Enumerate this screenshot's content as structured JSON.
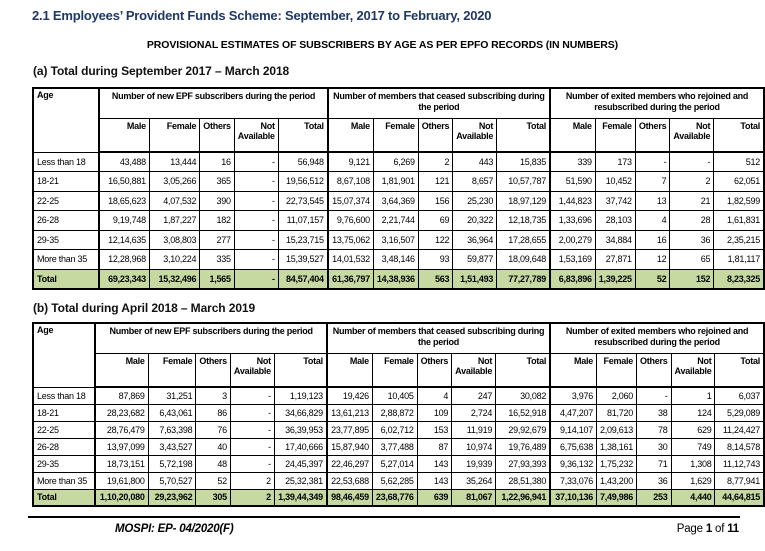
{
  "page": {
    "title": "2.1 Employees’ Provident Funds Scheme: September, 2017 to February, 2020",
    "subtitle": "PROVISIONAL ESTIMATES OF SUBSCRIBERS BY AGE AS PER EPFO RECORDS (IN NUMBERS)",
    "footer_left": "MOSPI: EP- 04/2020(F)",
    "footer_page": {
      "prefix": "Page",
      "number": "1",
      "of": "of",
      "total": "11"
    }
  },
  "colors": {
    "title_navy": "#1F3864",
    "total_row_green": "#C5D9A0",
    "border_black": "#000000"
  },
  "columns": {
    "age": "Age",
    "groups": [
      {
        "title": "Number of new EPF subscribers during the period"
      },
      {
        "title": "Number of members that ceased subscribing during the period"
      },
      {
        "title": "Number of exited members who rejoined and resubscribed during the period"
      }
    ],
    "subs": [
      "Male",
      "Female",
      "Others",
      "Not Available",
      "Total"
    ]
  },
  "tables": [
    {
      "id": "a",
      "heading": "(a)  Total during September 2017 – March 2018",
      "rows": [
        [
          "Less than 18",
          "43,488",
          "13,444",
          "16",
          "-",
          "56,948",
          "9,121",
          "6,269",
          "2",
          "443",
          "15,835",
          "339",
          "173",
          "-",
          "-",
          "512"
        ],
        [
          "18-21",
          "16,50,881",
          "3,05,266",
          "365",
          "-",
          "19,56,512",
          "8,67,108",
          "1,81,901",
          "121",
          "8,657",
          "10,57,787",
          "51,590",
          "10,452",
          "7",
          "2",
          "62,051"
        ],
        [
          "22-25",
          "18,65,623",
          "4,07,532",
          "390",
          "-",
          "22,73,545",
          "15,07,374",
          "3,64,369",
          "156",
          "25,230",
          "18,97,129",
          "1,44,823",
          "37,742",
          "13",
          "21",
          "1,82,599"
        ],
        [
          "26-28",
          "9,19,748",
          "1,87,227",
          "182",
          "-",
          "11,07,157",
          "9,76,600",
          "2,21,744",
          "69",
          "20,322",
          "12,18,735",
          "1,33,696",
          "28,103",
          "4",
          "28",
          "1,61,831"
        ],
        [
          "29-35",
          "12,14,635",
          "3,08,803",
          "277",
          "-",
          "15,23,715",
          "13,75,062",
          "3,16,507",
          "122",
          "36,964",
          "17,28,655",
          "2,00,279",
          "34,884",
          "16",
          "36",
          "2,35,215"
        ],
        [
          "More than 35",
          "12,28,968",
          "3,10,224",
          "335",
          "-",
          "15,39,527",
          "14,01,532",
          "3,48,146",
          "93",
          "59,877",
          "18,09,648",
          "1,53,169",
          "27,871",
          "12",
          "65",
          "1,81,117"
        ]
      ],
      "total": [
        "Total",
        "69,23,343",
        "15,32,496",
        "1,565",
        "-",
        "84,57,404",
        "61,36,797",
        "14,38,936",
        "563",
        "1,51,493",
        "77,27,789",
        "6,83,896",
        "1,39,225",
        "52",
        "152",
        "8,23,325"
      ]
    },
    {
      "id": "b",
      "heading": "(b)  Total during April 2018 – March 2019",
      "rows": [
        [
          "Less than 18",
          "87,869",
          "31,251",
          "3",
          "-",
          "1,19,123",
          "19,426",
          "10,405",
          "4",
          "247",
          "30,082",
          "3,976",
          "2,060",
          "-",
          "1",
          "6,037"
        ],
        [
          "18-21",
          "28,23,682",
          "6,43,061",
          "86",
          "-",
          "34,66,829",
          "13,61,213",
          "2,88,872",
          "109",
          "2,724",
          "16,52,918",
          "4,47,207",
          "81,720",
          "38",
          "124",
          "5,29,089"
        ],
        [
          "22-25",
          "28,76,479",
          "7,63,398",
          "76",
          "-",
          "36,39,953",
          "23,77,895",
          "6,02,712",
          "153",
          "11,919",
          "29,92,679",
          "9,14,107",
          "2,09,613",
          "78",
          "629",
          "11,24,427"
        ],
        [
          "26-28",
          "13,97,099",
          "3,43,527",
          "40",
          "-",
          "17,40,666",
          "15,87,940",
          "3,77,488",
          "87",
          "10,974",
          "19,76,489",
          "6,75,638",
          "1,38,161",
          "30",
          "749",
          "8,14,578"
        ],
        [
          "29-35",
          "18,73,151",
          "5,72,198",
          "48",
          "-",
          "24,45,397",
          "22,46,297",
          "5,27,014",
          "143",
          "19,939",
          "27,93,393",
          "9,36,132",
          "1,75,232",
          "71",
          "1,308",
          "11,12,743"
        ],
        [
          "More than 35",
          "19,61,800",
          "5,70,527",
          "52",
          "2",
          "25,32,381",
          "22,53,688",
          "5,62,285",
          "143",
          "35,264",
          "28,51,380",
          "7,33,076",
          "1,43,200",
          "36",
          "1,629",
          "8,77,941"
        ]
      ],
      "total": [
        "Total",
        "1,10,20,080",
        "29,23,962",
        "305",
        "2",
        "1,39,44,349",
        "98,46,459",
        "23,68,776",
        "639",
        "81,067",
        "1,22,96,941",
        "37,10,136",
        "7,49,986",
        "253",
        "4,440",
        "44,64,815"
      ]
    }
  ]
}
